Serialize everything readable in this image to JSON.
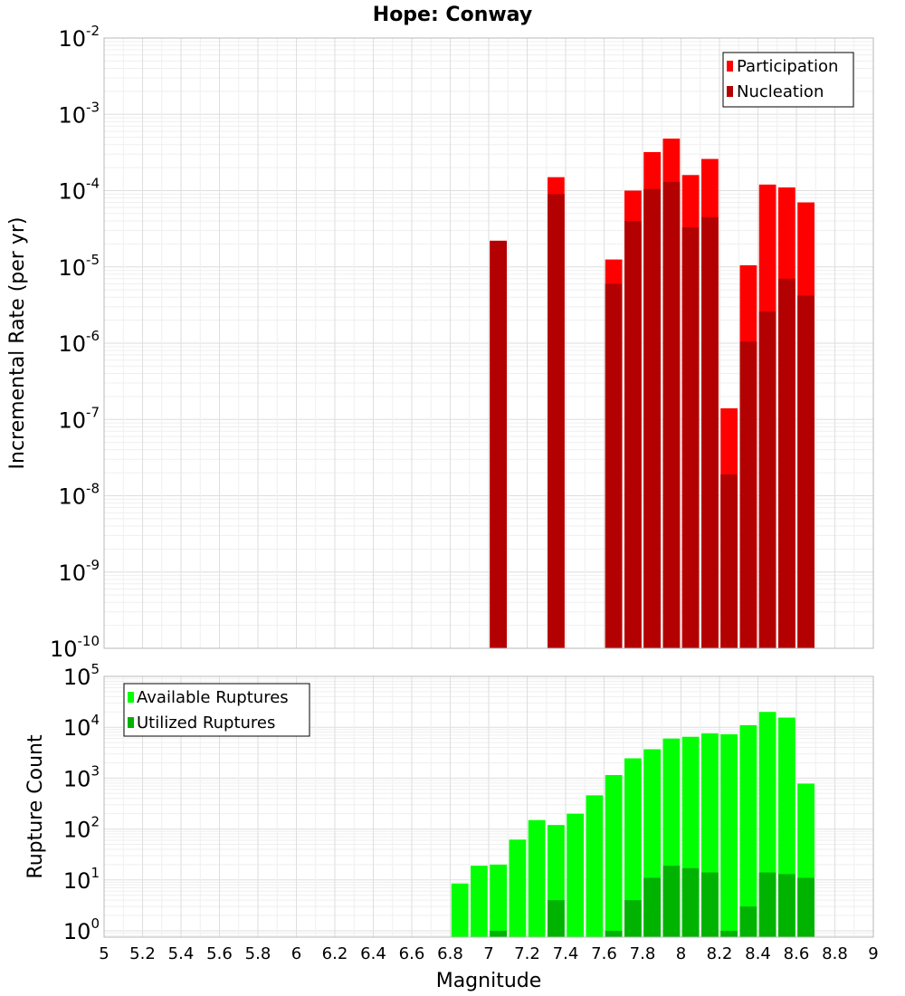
{
  "chart_data": [
    {
      "type": "bar",
      "title": "Hope: Conway",
      "ylabel": "Incremental Rate (per yr)",
      "yscale": "log",
      "ylim": [
        1e-10,
        0.01
      ],
      "y_tick_exponents": [
        -10,
        -9,
        -8,
        -7,
        -6,
        -5,
        -4,
        -3,
        -2
      ],
      "xlim": [
        5,
        9
      ],
      "legend_position": "top-right",
      "series": [
        {
          "name": "Participation",
          "color": "#ff0000",
          "x": [
            7.05,
            7.35,
            7.65,
            7.75,
            7.85,
            7.95,
            8.05,
            8.15,
            8.25,
            8.35,
            8.45,
            8.55,
            8.65
          ],
          "values": [
            2.2e-05,
            0.00015,
            1.25e-05,
            0.0001,
            0.00032,
            0.00048,
            0.00016,
            0.00026,
            1.4e-07,
            1.05e-05,
            0.00012,
            0.00011,
            7e-05
          ]
        },
        {
          "name": "Nucleation",
          "color": "#b30000",
          "x": [
            7.05,
            7.35,
            7.65,
            7.75,
            7.85,
            7.95,
            8.05,
            8.15,
            8.25,
            8.35,
            8.45,
            8.55,
            8.65
          ],
          "values": [
            2.2e-05,
            9e-05,
            6e-06,
            4e-05,
            0.000105,
            0.00013,
            3.3e-05,
            4.5e-05,
            1.9e-08,
            1.05e-06,
            2.6e-06,
            7e-06,
            4.2e-06
          ]
        }
      ]
    },
    {
      "type": "bar",
      "ylabel": "Rupture Count",
      "xlabel": "Magnitude",
      "yscale": "log",
      "ylim": [
        0.75,
        100000
      ],
      "y_tick_exponents": [
        0,
        1,
        2,
        3,
        4,
        5
      ],
      "xlim": [
        5,
        9
      ],
      "x_ticks": [
        "5",
        "5.2",
        "5.4",
        "5.6",
        "5.8",
        "6",
        "6.2",
        "6.4",
        "6.6",
        "6.8",
        "7",
        "7.2",
        "7.4",
        "7.6",
        "7.8",
        "8",
        "8.2",
        "8.4",
        "8.6",
        "8.8",
        "9"
      ],
      "legend_position": "top-left",
      "series": [
        {
          "name": "Available Ruptures",
          "color": "#00ff00",
          "x": [
            6.85,
            6.95,
            7.05,
            7.15,
            7.25,
            7.35,
            7.45,
            7.55,
            7.65,
            7.75,
            7.85,
            7.95,
            8.05,
            8.15,
            8.25,
            8.35,
            8.45,
            8.55,
            8.65
          ],
          "values": [
            8.5,
            19,
            20,
            62,
            150,
            120,
            200,
            460,
            1150,
            2450,
            3700,
            6000,
            6500,
            7600,
            7300,
            11000,
            20000,
            15500,
            780
          ]
        },
        {
          "name": "Utilized Ruptures",
          "color": "#00b300",
          "x": [
            7.05,
            7.35,
            7.65,
            7.75,
            7.85,
            7.95,
            8.05,
            8.15,
            8.25,
            8.35,
            8.45,
            8.55,
            8.65
          ],
          "values": [
            1,
            4,
            1,
            4,
            11,
            19,
            17,
            14,
            1,
            3,
            14,
            13,
            11
          ]
        }
      ]
    }
  ]
}
